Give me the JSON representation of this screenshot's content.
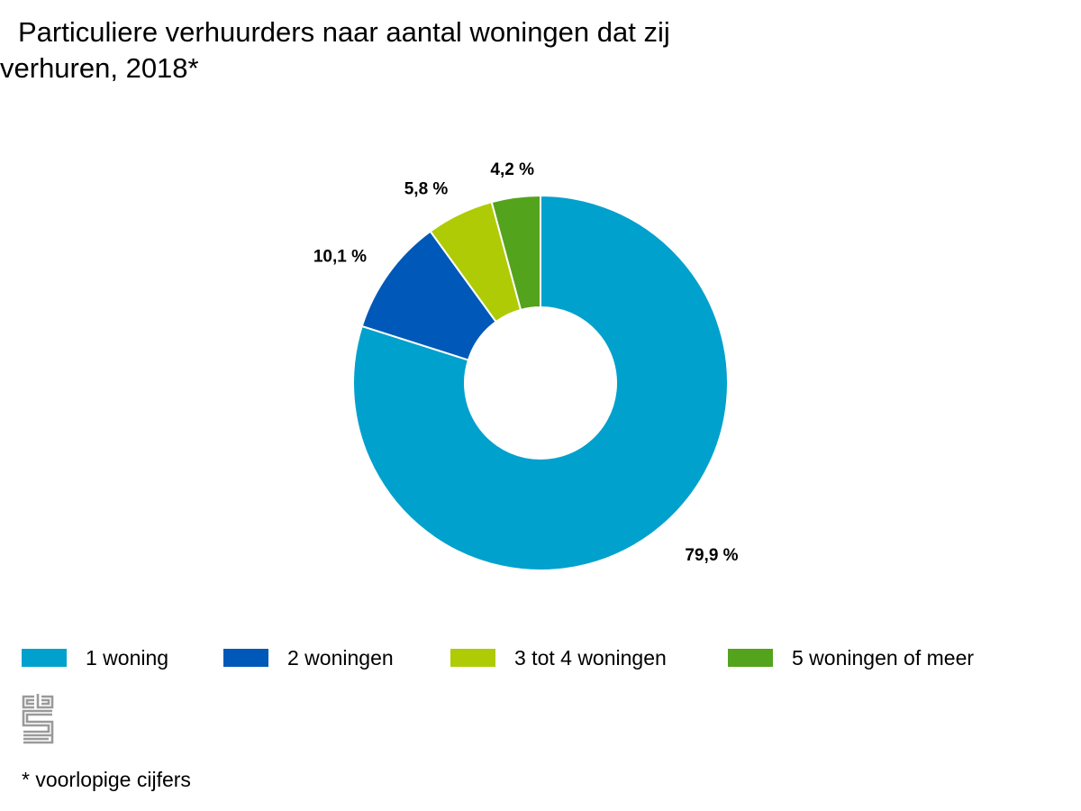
{
  "chart_data": {
    "type": "pie",
    "variant": "donut",
    "title_line1": "Particuliere verhuurders naar aantal woningen dat zij",
    "title_line2": "verhuren, 2018*",
    "categories": [
      "1 woning",
      "2 woningen",
      "3 tot 4 woningen",
      "5 woningen of meer"
    ],
    "values": [
      79.9,
      10.1,
      5.8,
      4.2
    ],
    "value_labels": [
      "79,9 %",
      "10,1 %",
      "5,8 %",
      "4,2 %"
    ],
    "colors": [
      "#00a1cd",
      "#0058b8",
      "#afcb05",
      "#53a31d"
    ],
    "legend_position": "bottom",
    "footnote": "* voorlopige cijfers"
  },
  "logo": {
    "name": "cbs-logo",
    "text": "cbs",
    "color": "#9a9a9a"
  }
}
